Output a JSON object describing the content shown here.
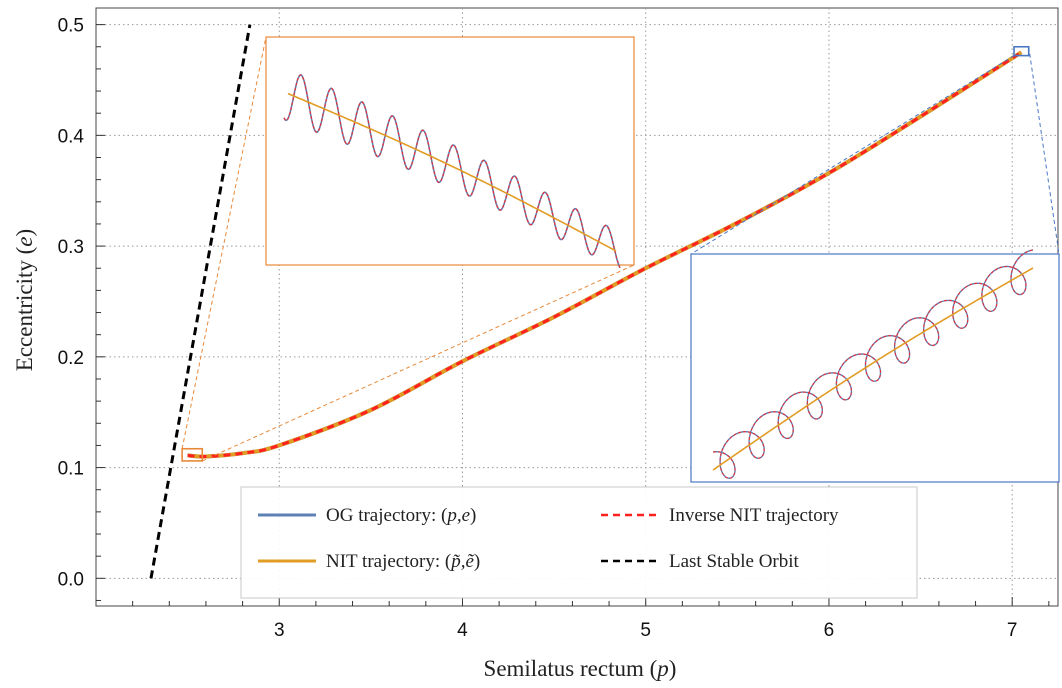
{
  "chart_data": {
    "type": "line",
    "xlabel": "Semilatus rectum (p)",
    "ylabel": "Eccentricity (e)",
    "xlim": [
      2.0,
      7.25
    ],
    "ylim": [
      -0.025,
      0.515
    ],
    "x_ticks": [
      3,
      4,
      5,
      6,
      7
    ],
    "y_ticks": [
      0.0,
      0.1,
      0.2,
      0.3,
      0.4,
      0.5
    ],
    "x_tick_labels": [
      "3",
      "4",
      "5",
      "6",
      "7"
    ],
    "y_tick_labels": [
      "0.0",
      "0.1",
      "0.2",
      "0.3",
      "0.4",
      "0.5"
    ],
    "grid": true,
    "legend_position": "bottom-center",
    "series": [
      {
        "name": "OG trajectory: (p,e)",
        "color": "#5e81b5",
        "style": "solid",
        "points": [
          [
            2.5,
            0.111
          ],
          [
            2.6,
            0.11
          ],
          [
            2.8,
            0.113
          ],
          [
            3.0,
            0.12
          ],
          [
            3.5,
            0.152
          ],
          [
            4.0,
            0.196
          ],
          [
            4.5,
            0.236
          ],
          [
            5.0,
            0.28
          ],
          [
            5.5,
            0.321
          ],
          [
            6.0,
            0.366
          ],
          [
            6.5,
            0.417
          ],
          [
            7.05,
            0.475
          ]
        ]
      },
      {
        "name": "NIT trajectory: (p̃,ẽ)",
        "color": "#e19c24",
        "style": "solid",
        "points": [
          [
            2.5,
            0.111
          ],
          [
            2.6,
            0.11
          ],
          [
            2.8,
            0.113
          ],
          [
            3.0,
            0.12
          ],
          [
            3.5,
            0.152
          ],
          [
            4.0,
            0.196
          ],
          [
            4.5,
            0.236
          ],
          [
            5.0,
            0.28
          ],
          [
            5.5,
            0.321
          ],
          [
            6.0,
            0.366
          ],
          [
            6.5,
            0.417
          ],
          [
            7.05,
            0.475
          ]
        ]
      },
      {
        "name": "Inverse NIT trajectory",
        "color": "#ff2020",
        "style": "dashed",
        "points": [
          [
            2.5,
            0.111
          ],
          [
            2.6,
            0.11
          ],
          [
            2.8,
            0.113
          ],
          [
            3.0,
            0.12
          ],
          [
            3.5,
            0.152
          ],
          [
            4.0,
            0.196
          ],
          [
            4.5,
            0.236
          ],
          [
            5.0,
            0.28
          ],
          [
            5.5,
            0.321
          ],
          [
            6.0,
            0.366
          ],
          [
            6.5,
            0.417
          ],
          [
            7.05,
            0.475
          ]
        ]
      },
      {
        "name": "Last Stable Orbit",
        "color": "#000000",
        "style": "dashed",
        "points": [
          [
            2.3,
            0.0
          ],
          [
            2.84,
            0.5
          ]
        ]
      }
    ],
    "legend": [
      {
        "label": "OG trajectory: (p,e)",
        "color": "#5e81b5",
        "style": "solid"
      },
      {
        "label": "NIT trajectory: (p̃,ẽ)",
        "color": "#e19c24",
        "style": "solid"
      },
      {
        "label": "Inverse NIT trajectory",
        "color": "#ff2020",
        "style": "dashed"
      },
      {
        "label": "Last Stable Orbit",
        "color": "#000000",
        "style": "dashed"
      }
    ],
    "insets": [
      {
        "name": "zoom-start",
        "frame_color": "#e8893a",
        "region_x": [
          2.47,
          2.58
        ],
        "region_y": [
          0.106,
          0.117
        ]
      },
      {
        "name": "zoom-end",
        "frame_color": "#4a77c4",
        "region_x": [
          7.01,
          7.09
        ],
        "region_y": [
          0.472,
          0.48
        ]
      }
    ]
  }
}
